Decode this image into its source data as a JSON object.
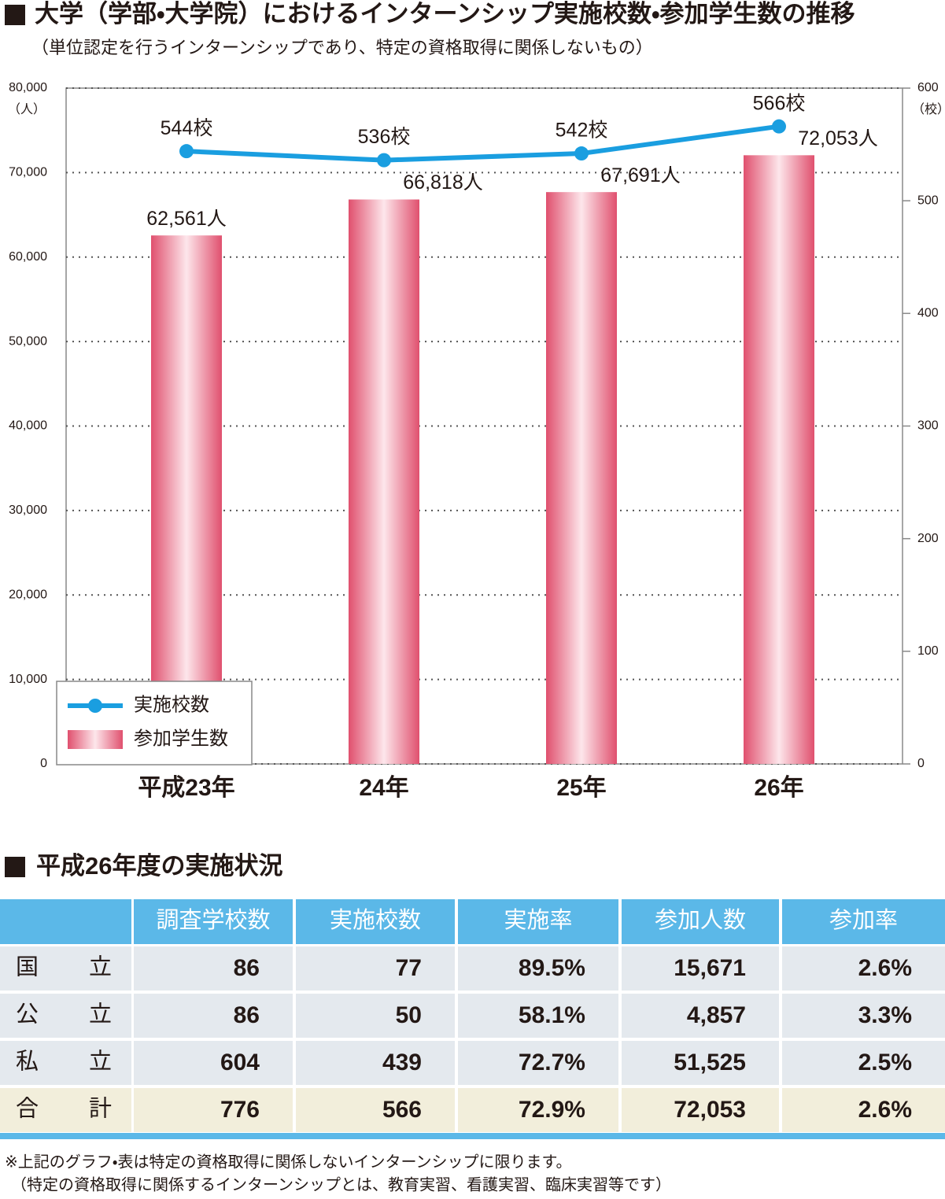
{
  "chart_data": {
    "type": "bar",
    "title": "大学（学部・大学院）におけるインターンシップ実施校数・参加学生数の推移",
    "subtitle": "（単位認定を行うインターンシップであり、特定の資格取得に関係しないもの）",
    "categories": [
      "平成23年",
      "24年",
      "25年",
      "26年"
    ],
    "series": [
      {
        "name": "実施校数",
        "type": "line",
        "axis": "y2",
        "color": "#1a9ee0",
        "values": [
          544,
          536,
          542,
          566
        ],
        "value_labels": [
          "544校",
          "536校",
          "542校",
          "566校"
        ]
      },
      {
        "name": "参加学生数",
        "type": "bar",
        "color": "#e0506e",
        "values": [
          62561,
          66818,
          67691,
          72053
        ],
        "value_labels": [
          "62,561人",
          "66,818人",
          "67,691人",
          "72,053人"
        ]
      }
    ],
    "ylim": [
      0,
      80000
    ],
    "yticks": [
      0,
      {
        "value": 10000,
        "label": "10,000"
      },
      {
        "value": 20000,
        "label": "20,000"
      },
      {
        "value": 30000,
        "label": "30,000"
      },
      {
        "value": 40000,
        "label": "40,000"
      },
      {
        "value": 50000,
        "label": "50,000"
      },
      {
        "value": 60000,
        "label": "60,000"
      },
      {
        "value": 70000,
        "label": "70,000"
      },
      {
        "value": 80000,
        "label": "80,000"
      }
    ],
    "y_unit": "（人）",
    "y2lim": [
      0,
      600
    ],
    "y2ticks": [
      0,
      100,
      200,
      300,
      400,
      500,
      600
    ],
    "y2_unit": "（校）",
    "grid": true,
    "legend": "lower left"
  },
  "table": {
    "title": "平成26年度の実施状況",
    "header": [
      "調査学校数",
      "実施校数",
      "実施率",
      "参加人数",
      "参加率"
    ],
    "rows": [
      [
        "国立",
        "86",
        "77",
        "89.5%",
        "15,671",
        "2.6%"
      ],
      [
        "公立",
        "86",
        "50",
        "58.1%",
        "4,857",
        "3.3%"
      ],
      [
        "私立",
        "604",
        "439",
        "72.7%",
        "51,525",
        "2.5%"
      ],
      [
        "合計",
        "776",
        "566",
        "72.9%",
        "72,053",
        "2.6%"
      ]
    ]
  },
  "footnote": [
    "※上記のグラフ・表は特定の資格取得に関係しないインターンシップに限ります。",
    "（特定の資格取得に関係するインターンシップとは、教育実習、看護実習、臨床実習等です）"
  ]
}
